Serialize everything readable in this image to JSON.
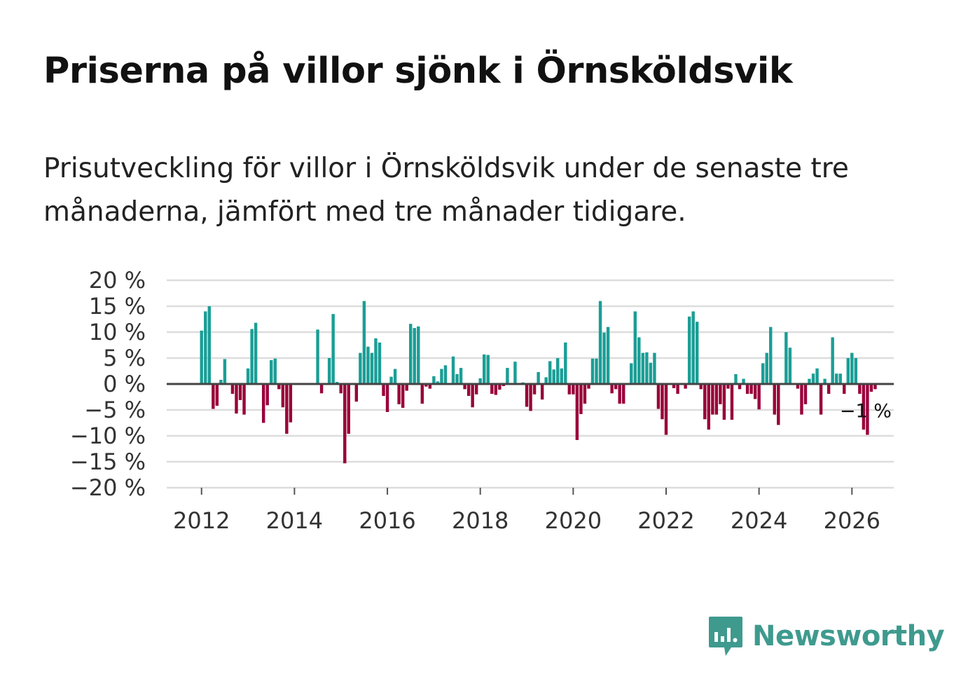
{
  "title": "Priserna på villor sjönk i Örnsköldsvik",
  "subtitle": "Prisutveckling för villor i Örnsköldsvik under de senaste tre månaderna, jämfört med tre månader tidigare.",
  "brand": "Newsworthy",
  "colors": {
    "positive": "#1a9e96",
    "negative": "#990039",
    "grid": "#dddddd",
    "zero": "#444444",
    "brand": "#3f9a8e"
  },
  "chart_data": {
    "type": "bar",
    "title": "Priserna på villor sjönk i Örnsköldsvik",
    "xlabel": "",
    "ylabel": "",
    "ylim": [
      -20,
      20
    ],
    "xlim": [
      2011.25,
      2026.9
    ],
    "y_ticks": [
      20,
      15,
      10,
      5,
      0,
      -5,
      -10,
      -15,
      -20
    ],
    "y_tick_labels": [
      "20 %",
      "15 %",
      "10 %",
      "5 %",
      "0 %",
      "−5 %",
      "−10 %",
      "−15 %",
      "−20 %"
    ],
    "x_ticks": [
      2012,
      2014,
      2016,
      2018,
      2020,
      2022,
      2024,
      2026
    ],
    "x_tick_labels": [
      "2012",
      "2014",
      "2016",
      "2018",
      "2020",
      "2022",
      "2024",
      "2026"
    ],
    "start": 2012.0,
    "step_months": 1,
    "values": [
      10.3,
      14,
      15,
      -4.8,
      -4.2,
      0.8,
      4.8,
      0,
      -1.9,
      -5.7,
      -3.1,
      -5.9,
      3,
      10.6,
      11.8,
      0,
      -7.5,
      -4.1,
      4.6,
      4.9,
      -1,
      -4.5,
      -9.6,
      -7.4,
      0,
      0,
      0,
      0,
      0,
      0,
      10.5,
      -1.8,
      0,
      5,
      13.5,
      0.4,
      -1.8,
      -15.3,
      -9.6,
      0,
      -3.4,
      6,
      16,
      7.2,
      6,
      8.8,
      8,
      -2.3,
      -5.4,
      1.4,
      2.9,
      -3.9,
      -4.6,
      -1.3,
      11.6,
      10.8,
      11.1,
      -3.8,
      -0.5,
      -0.9,
      1.5,
      0.5,
      2.9,
      3.6,
      0,
      5.3,
      1.9,
      3.1,
      -1,
      -2.3,
      -4.5,
      -2,
      1.1,
      5.7,
      5.6,
      -1.9,
      -2.1,
      -1.1,
      -0.4,
      3.1,
      0,
      4.3,
      0,
      0.3,
      -4.4,
      -5.2,
      -2,
      2.3,
      -3,
      1.3,
      4.4,
      2.8,
      5,
      3,
      8,
      -2,
      -2,
      -10.8,
      -5.8,
      -3.8,
      -0.9,
      4.9,
      4.9,
      16,
      9.9,
      11,
      -1.8,
      -1,
      -3.8,
      -3.8,
      0,
      4,
      14,
      9,
      6,
      6.1,
      4.1,
      6,
      -4.8,
      -6.8,
      -9.8,
      0,
      -0.8,
      -1.9,
      0,
      -0.9,
      13,
      14,
      12,
      -1,
      -6.8,
      -8.8,
      -5.9,
      -5.9,
      -3.9,
      -6.9,
      -0.9,
      -6.9,
      1.9,
      -1,
      1,
      -1.9,
      -1.9,
      -2.9,
      -4.9,
      4,
      6,
      11,
      -5.9,
      -7.9,
      0,
      10,
      7,
      0,
      -0.9,
      -5.9,
      -3.9,
      1,
      2,
      3,
      -5.9,
      1,
      -1.9,
      9,
      2,
      2,
      -1.9,
      5,
      6,
      5,
      -1.9,
      -8.8,
      -9.8,
      -1.5,
      -1
    ],
    "annotations": [
      {
        "x": 2026.25,
        "y": -1,
        "text": "−1 %"
      }
    ],
    "legend": "none"
  }
}
